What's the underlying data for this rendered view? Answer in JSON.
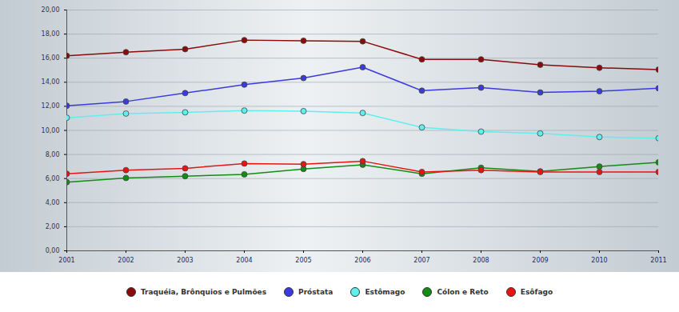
{
  "chart_data": {
    "type": "line",
    "x": [
      2001,
      2002,
      2003,
      2004,
      2005,
      2006,
      2007,
      2008,
      2009,
      2010,
      2011
    ],
    "xlim": [
      2001,
      2011
    ],
    "xticks": [
      2001,
      2002,
      2003,
      2004,
      2005,
      2006,
      2007,
      2008,
      2009,
      2010,
      2011
    ],
    "ylim": [
      0,
      20
    ],
    "yticks": [
      {
        "value": 0,
        "label": "0,00"
      },
      {
        "value": 2,
        "label": "2,00"
      },
      {
        "value": 4,
        "label": "4,00"
      },
      {
        "value": 6,
        "label": "6,00"
      },
      {
        "value": 8,
        "label": "8,00"
      },
      {
        "value": 10,
        "label": "10,00"
      },
      {
        "value": 12,
        "label": "12,00"
      },
      {
        "value": 14,
        "label": "14,00"
      },
      {
        "value": 16,
        "label": "16,00"
      },
      {
        "value": 18,
        "label": "18,00"
      },
      {
        "value": 20,
        "label": "20,00"
      }
    ],
    "grid": true,
    "legend": "bottom",
    "marker": "circle",
    "series": [
      {
        "name": "Traquéia, Brônquios e Pulmões",
        "color": "#8b0a0a",
        "values": [
          16.2,
          16.5,
          16.75,
          17.5,
          17.45,
          17.4,
          15.9,
          15.9,
          15.45,
          15.2,
          15.05
        ]
      },
      {
        "name": "Próstata",
        "color": "#3a3ae0",
        "values": [
          12.05,
          12.4,
          13.1,
          13.8,
          14.35,
          15.25,
          13.3,
          13.55,
          13.15,
          13.25,
          13.5
        ]
      },
      {
        "name": "Estômago",
        "color": "#5fefef",
        "values": [
          11.05,
          11.4,
          11.5,
          11.65,
          11.6,
          11.45,
          10.25,
          9.9,
          9.75,
          9.45,
          9.35
        ]
      },
      {
        "name": "Cólon e Reto",
        "color": "#128c12",
        "values": [
          5.7,
          6.05,
          6.2,
          6.35,
          6.8,
          7.15,
          6.4,
          6.9,
          6.6,
          7.0,
          7.35
        ]
      },
      {
        "name": "Esôfago",
        "color": "#e81414",
        "values": [
          6.4,
          6.7,
          6.85,
          7.25,
          7.2,
          7.45,
          6.55,
          6.7,
          6.55,
          6.55,
          6.55
        ]
      }
    ]
  }
}
